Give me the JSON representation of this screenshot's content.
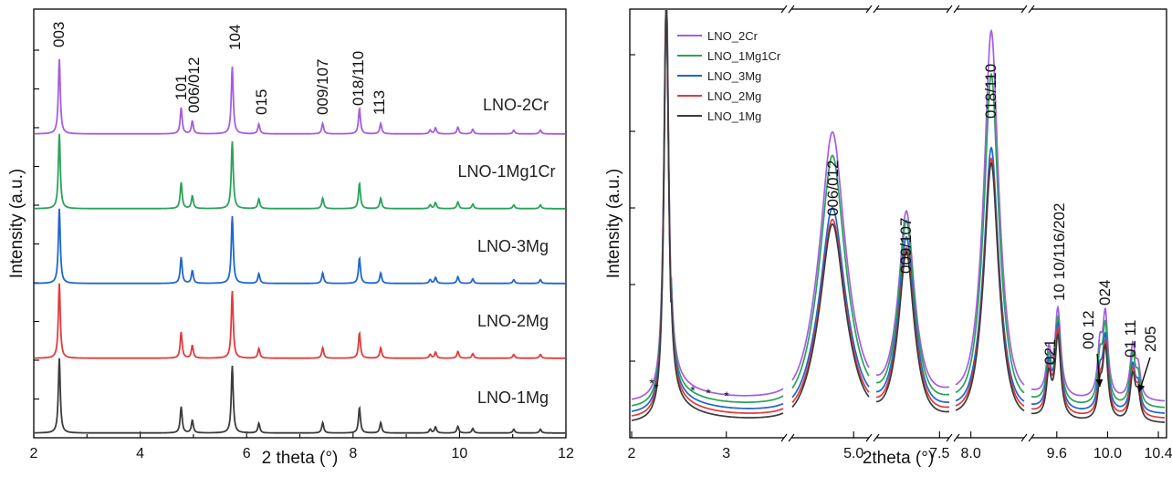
{
  "chart_data": [
    {
      "type": "line",
      "panel": "left",
      "xlabel": "2 theta (°)",
      "ylabel": "Intensity (a.u.)",
      "xlim": [
        2,
        12
      ],
      "xticks": [
        "2",
        "4",
        "6",
        "8",
        "10",
        "12"
      ],
      "peak_positions": [
        2.48,
        4.77,
        4.98,
        5.73,
        6.23,
        7.43,
        8.12,
        8.52,
        9.45,
        9.55,
        9.97,
        10.25,
        11.02,
        11.52
      ],
      "peak_heights": [
        1.0,
        0.35,
        0.17,
        0.9,
        0.13,
        0.14,
        0.34,
        0.14,
        0.05,
        0.08,
        0.09,
        0.06,
        0.05,
        0.05
      ],
      "peak_labels": [
        {
          "text": "003",
          "x": 2.48
        },
        {
          "text": "101",
          "x": 4.77
        },
        {
          "text": "006/012",
          "x": 4.98
        },
        {
          "text": "104",
          "x": 5.73
        },
        {
          "text": "015",
          "x": 6.23
        },
        {
          "text": "009/107",
          "x": 7.43
        },
        {
          "text": "018/110",
          "x": 8.12
        },
        {
          "text": "113",
          "x": 8.52
        }
      ],
      "series": [
        {
          "label": "LNO-2Cr",
          "color": "#a55ee0"
        },
        {
          "label": "LNO-1Mg1Cr",
          "color": "#2aa35a"
        },
        {
          "label": "LNO-3Mg",
          "color": "#1f66d1"
        },
        {
          "label": "LNO-2Mg",
          "color": "#e23b3b"
        },
        {
          "label": "LNO-1Mg",
          "color": "#3c3c3c"
        }
      ]
    },
    {
      "type": "line",
      "panel": "right",
      "xlabel": "2theta (°)",
      "ylabel": "Intensity (a.u.)",
      "broken_axis": true,
      "segments": [
        {
          "xlim": [
            2.0,
            3.6
          ],
          "ticks": [
            "2",
            "3"
          ]
        },
        {
          "xlim": [
            4.4,
            5.15
          ],
          "ticks": [
            "5.0"
          ]
        },
        {
          "xlim": [
            6.85,
            7.6
          ],
          "ticks": [
            "7.5"
          ]
        },
        {
          "xlim": [
            7.9,
            8.35
          ],
          "ticks": [
            "8.0"
          ]
        },
        {
          "xlim": [
            9.4,
            10.45
          ],
          "ticks": [
            "9.6",
            "10.0",
            "10.4"
          ]
        }
      ],
      "peak_labels": [
        {
          "text": "006/012"
        },
        {
          "text": "009/107"
        },
        {
          "text": "018/110"
        },
        {
          "text": "021"
        },
        {
          "text": "10 10/116/202"
        },
        {
          "text": "00 12"
        },
        {
          "text": "024"
        },
        {
          "text": "01 11"
        },
        {
          "text": "205"
        }
      ],
      "annotation_marks": [
        "*",
        "*",
        "*",
        "*",
        "*"
      ],
      "legend": {
        "placement": "top-left",
        "entries": [
          {
            "label": "LNO_2Cr",
            "color": "#a55ee0"
          },
          {
            "label": "LNO_1Mg1Cr",
            "color": "#2aa35a"
          },
          {
            "label": "LNO_3Mg",
            "color": "#1f66d1"
          },
          {
            "label": "LNO_2Mg",
            "color": "#e23b3b"
          },
          {
            "label": "LNO_1Mg",
            "color": "#3c3c3c"
          }
        ]
      }
    }
  ]
}
